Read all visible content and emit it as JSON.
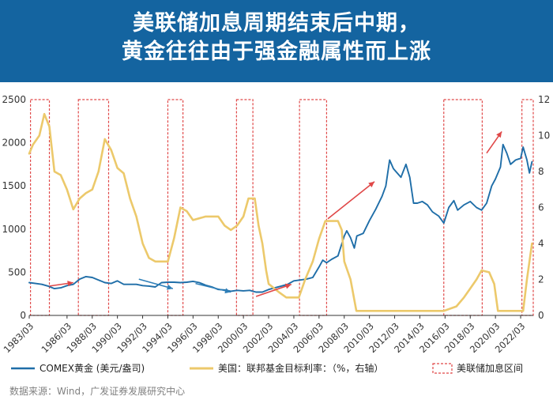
{
  "header": {
    "title_line1": "美联储加息周期结束后中期，",
    "title_line2": "黄金往往由于强金融属性而上涨",
    "background": "#1464a0"
  },
  "source": "数据来源：Wind，广发证券发展研究中心",
  "chart_data": {
    "type": "line",
    "x_ticks": [
      "1983/03",
      "1986/03",
      "1988/03",
      "1990/03",
      "1992/03",
      "1994/03",
      "1996/03",
      "1998/03",
      "2000/03",
      "2002/03",
      "2004/03",
      "2006/03",
      "2008/03",
      "2010/03",
      "2012/03",
      "2014/03",
      "2016/03",
      "2018/03",
      "2020/03",
      "2022/03"
    ],
    "xlim": [
      1983.0,
      2023.0
    ],
    "y_left": {
      "lim": [
        0,
        2500
      ],
      "ticks": [
        0,
        500,
        1000,
        1500,
        2000,
        2500
      ]
    },
    "y_right": {
      "lim": [
        0,
        12
      ],
      "ticks": [
        0,
        2,
        4,
        6,
        8,
        10,
        12
      ]
    },
    "grid": false,
    "legend_position": "bottom",
    "series": [
      {
        "name": "COMEX黄金 (美元/盎司)",
        "axis": "left",
        "color": "#1f6ea8",
        "x": [
          1983.0,
          1983.5,
          1984.0,
          1984.5,
          1985.0,
          1985.5,
          1986.0,
          1986.5,
          1987.0,
          1987.5,
          1988.0,
          1988.5,
          1989.0,
          1989.5,
          1990.0,
          1990.5,
          1991.0,
          1991.5,
          1992.0,
          1992.5,
          1993.0,
          1993.5,
          1994.0,
          1994.5,
          1995.0,
          1995.5,
          1996.0,
          1996.5,
          1997.0,
          1997.5,
          1998.0,
          1998.5,
          1999.0,
          1999.5,
          2000.0,
          2000.5,
          2001.0,
          2001.5,
          2002.0,
          2002.5,
          2003.0,
          2003.5,
          2004.0,
          2004.5,
          2005.0,
          2005.5,
          2006.0,
          2006.3,
          2006.6,
          2007.0,
          2007.5,
          2008.0,
          2008.2,
          2008.5,
          2008.8,
          2009.0,
          2009.5,
          2010.0,
          2010.5,
          2011.0,
          2011.3,
          2011.6,
          2011.9,
          2012.2,
          2012.5,
          2012.9,
          2013.2,
          2013.5,
          2013.8,
          2014.2,
          2014.6,
          2015.0,
          2015.5,
          2015.9,
          2016.3,
          2016.7,
          2017.0,
          2017.5,
          2018.0,
          2018.5,
          2018.9,
          2019.3,
          2019.7,
          2020.0,
          2020.4,
          2020.6,
          2020.9,
          2021.2,
          2021.6,
          2022.0,
          2022.2,
          2022.5,
          2022.7,
          2022.9
        ],
        "values": [
          380,
          370,
          360,
          340,
          310,
          320,
          345,
          360,
          420,
          450,
          440,
          410,
          380,
          370,
          400,
          360,
          360,
          360,
          345,
          340,
          330,
          380,
          385,
          385,
          380,
          385,
          395,
          380,
          350,
          330,
          300,
          295,
          280,
          290,
          285,
          290,
          270,
          270,
          300,
          320,
          340,
          360,
          400,
          410,
          420,
          440,
          560,
          640,
          610,
          650,
          690,
          920,
          980,
          900,
          780,
          920,
          950,
          1100,
          1230,
          1380,
          1500,
          1800,
          1700,
          1650,
          1600,
          1750,
          1600,
          1300,
          1300,
          1320,
          1280,
          1200,
          1150,
          1070,
          1250,
          1330,
          1220,
          1280,
          1320,
          1250,
          1220,
          1300,
          1500,
          1580,
          1720,
          1980,
          1880,
          1750,
          1800,
          1820,
          1950,
          1800,
          1650,
          1780
        ]
      },
      {
        "name": "美国：联邦基金目标利率：（%，右轴）",
        "axis": "right",
        "color": "#ecc96b",
        "x": [
          1983.0,
          1983.3,
          1983.8,
          1984.2,
          1984.6,
          1985.0,
          1985.5,
          1986.0,
          1986.5,
          1987.0,
          1987.5,
          1988.0,
          1988.5,
          1989.0,
          1989.5,
          1990.0,
          1990.5,
          1991.0,
          1991.5,
          1992.0,
          1992.5,
          1993.0,
          1994.0,
          1994.5,
          1995.0,
          1995.5,
          1996.0,
          1997.0,
          1997.5,
          1998.0,
          1998.5,
          1999.0,
          1999.5,
          2000.0,
          2000.4,
          2000.9,
          2001.2,
          2001.5,
          2001.8,
          2002.0,
          2002.9,
          2003.4,
          2004.4,
          2004.9,
          2005.5,
          2006.0,
          2006.5,
          2007.5,
          2007.8,
          2008.0,
          2008.5,
          2008.96,
          2009.0,
          2015.9,
          2016.9,
          2017.5,
          2018.0,
          2018.5,
          2018.9,
          2019.5,
          2019.9,
          2020.2,
          2022.2,
          2022.5,
          2022.9
        ],
        "values": [
          9.0,
          9.5,
          10.0,
          11.2,
          10.5,
          8.0,
          7.8,
          7.0,
          5.9,
          6.5,
          6.8,
          7.0,
          8.0,
          9.8,
          9.2,
          8.2,
          7.9,
          6.5,
          5.5,
          4.0,
          3.2,
          3.0,
          3.0,
          4.3,
          6.0,
          5.8,
          5.3,
          5.5,
          5.5,
          5.5,
          5.0,
          4.75,
          5.0,
          5.5,
          6.5,
          6.5,
          5.0,
          4.0,
          2.5,
          1.75,
          1.25,
          1.0,
          1.0,
          2.0,
          3.0,
          4.25,
          5.25,
          5.25,
          4.75,
          3.0,
          2.0,
          0.25,
          0.25,
          0.25,
          0.5,
          1.0,
          1.5,
          2.0,
          2.5,
          2.4,
          1.75,
          0.25,
          0.25,
          2.0,
          4.0
        ]
      }
    ],
    "highlight_periods": {
      "name": "美联储加息区间",
      "color": "#e04848",
      "ranges": [
        [
          1983.1,
          1984.6
        ],
        [
          1986.9,
          1989.3
        ],
        [
          1994.0,
          1995.2
        ],
        [
          1999.45,
          2000.75
        ],
        [
          2004.45,
          2006.6
        ],
        [
          2015.9,
          2018.95
        ],
        [
          2022.1,
          2023.0
        ]
      ]
    },
    "arrows": [
      {
        "color": "#e04848",
        "from": [
          1984.6,
          340
        ],
        "to": [
          1986.5,
          380
        ]
      },
      {
        "color": "#2f7fb8",
        "from": [
          1991.7,
          420
        ],
        "to": [
          1994.4,
          310
        ]
      },
      {
        "color": "#2f7fb8",
        "from": [
          1996.2,
          370
        ],
        "to": [
          1999.0,
          270
        ]
      },
      {
        "color": "#e04848",
        "from": [
          2001.0,
          220
        ],
        "to": [
          2003.8,
          360
        ]
      },
      {
        "color": "#e04848",
        "from": [
          2006.7,
          1120
        ],
        "to": [
          2010.4,
          1550
        ]
      },
      {
        "color": "#e04848",
        "from": [
          2019.3,
          1880
        ],
        "to": [
          2020.5,
          2130
        ]
      }
    ]
  }
}
